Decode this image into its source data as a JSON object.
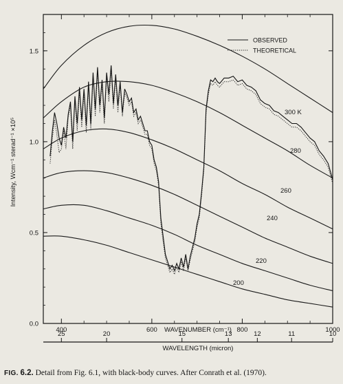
{
  "chart_data": {
    "type": "line",
    "x_axis_bottom": {
      "label": "WAVENUMBER (cm⁻¹)",
      "range": [
        360,
        1000
      ],
      "ticks": [
        400,
        600,
        800,
        1000
      ],
      "tick_labels": [
        "400",
        "600",
        "800",
        "1000"
      ]
    },
    "x_axis_secondary": {
      "label": "WAVELENGTH (micron)",
      "ticks": [
        25,
        20,
        15,
        13,
        12,
        11,
        10
      ],
      "tick_labels": [
        "25",
        "20",
        "15",
        "13",
        "12",
        "11",
        "10"
      ]
    },
    "y_axis": {
      "label": "Intensity, Wcm⁻¹ sterad⁻¹ ×10⁵",
      "range": [
        0,
        1.7
      ],
      "ticks": [
        0,
        0.5,
        1.0,
        1.5
      ],
      "tick_labels": [
        "0.0",
        "0.5",
        "1.0",
        "1.5"
      ]
    },
    "legend": {
      "placement": "top-right",
      "entries": [
        {
          "label": "OBSERVED",
          "style": "solid"
        },
        {
          "label": "THEORETICAL",
          "style": "dotted"
        }
      ]
    },
    "blackbody_curves": [
      {
        "label": "300 K",
        "T": 300,
        "x": [
          360,
          400,
          450,
          500,
          550,
          600,
          650,
          700,
          750,
          800,
          850,
          900,
          950,
          1000
        ],
        "y": [
          1.29,
          1.42,
          1.53,
          1.6,
          1.635,
          1.64,
          1.62,
          1.58,
          1.53,
          1.47,
          1.4,
          1.32,
          1.24,
          1.16
        ]
      },
      {
        "label": "280",
        "T": 280,
        "x": [
          360,
          400,
          450,
          500,
          550,
          600,
          650,
          700,
          750,
          800,
          850,
          900,
          950,
          1000
        ],
        "y": [
          1.13,
          1.22,
          1.3,
          1.33,
          1.33,
          1.31,
          1.27,
          1.22,
          1.16,
          1.09,
          1.02,
          0.95,
          0.87,
          0.8
        ]
      },
      {
        "label": "260",
        "T": 260,
        "x": [
          360,
          400,
          450,
          500,
          550,
          600,
          650,
          700,
          750,
          800,
          850,
          900,
          950,
          1000
        ],
        "y": [
          0.96,
          1.02,
          1.06,
          1.07,
          1.05,
          1.01,
          0.96,
          0.9,
          0.84,
          0.77,
          0.71,
          0.64,
          0.58,
          0.52
        ]
      },
      {
        "label": "240",
        "T": 240,
        "x": [
          360,
          400,
          450,
          500,
          550,
          600,
          650,
          700,
          750,
          800,
          850,
          900,
          950,
          1000
        ],
        "y": [
          0.8,
          0.83,
          0.84,
          0.83,
          0.8,
          0.76,
          0.71,
          0.65,
          0.59,
          0.53,
          0.47,
          0.42,
          0.37,
          0.33
        ]
      },
      {
        "label": "220",
        "T": 220,
        "x": [
          360,
          400,
          450,
          500,
          550,
          600,
          650,
          700,
          750,
          800,
          850,
          900,
          950,
          1000
        ],
        "y": [
          0.63,
          0.65,
          0.65,
          0.62,
          0.58,
          0.54,
          0.49,
          0.43,
          0.38,
          0.33,
          0.29,
          0.25,
          0.21,
          0.18
        ]
      },
      {
        "label": "200",
        "T": 200,
        "x": [
          360,
          400,
          450,
          500,
          550,
          600,
          650,
          700,
          750,
          800,
          850,
          900,
          950,
          1000
        ],
        "y": [
          0.48,
          0.48,
          0.46,
          0.43,
          0.39,
          0.35,
          0.31,
          0.27,
          0.23,
          0.19,
          0.16,
          0.13,
          0.11,
          0.09
        ]
      }
    ],
    "series": [
      {
        "name": "OBSERVED",
        "x": [
          375,
          380,
          385,
          390,
          395,
          400,
          405,
          410,
          415,
          420,
          425,
          430,
          435,
          440,
          445,
          450,
          455,
          460,
          465,
          470,
          475,
          480,
          485,
          490,
          495,
          500,
          505,
          510,
          515,
          520,
          525,
          530,
          535,
          540,
          545,
          550,
          555,
          560,
          565,
          570,
          575,
          580,
          585,
          590,
          595,
          600,
          605,
          610,
          615,
          620,
          625,
          630,
          635,
          640,
          645,
          650,
          655,
          660,
          665,
          670,
          675,
          680,
          685,
          690,
          695,
          700,
          705,
          710,
          715,
          720,
          725,
          730,
          735,
          740,
          745,
          750,
          760,
          770,
          780,
          790,
          800,
          810,
          820,
          830,
          840,
          850,
          860,
          870,
          880,
          890,
          900,
          910,
          920,
          930,
          940,
          950,
          960,
          970,
          980,
          990,
          1000
        ],
        "y": [
          0.92,
          1.06,
          1.16,
          1.1,
          1.02,
          0.98,
          1.08,
          1.02,
          1.15,
          1.22,
          1.0,
          1.25,
          1.1,
          1.3,
          1.12,
          1.29,
          1.09,
          1.33,
          1.1,
          1.38,
          1.18,
          1.41,
          1.2,
          1.34,
          1.13,
          1.38,
          1.26,
          1.42,
          1.21,
          1.37,
          1.2,
          1.33,
          1.16,
          1.29,
          1.26,
          1.22,
          1.24,
          1.16,
          1.18,
          1.12,
          1.14,
          1.1,
          1.06,
          1.06,
          1.0,
          0.98,
          0.9,
          0.86,
          0.78,
          0.58,
          0.48,
          0.38,
          0.34,
          0.3,
          0.32,
          0.29,
          0.33,
          0.3,
          0.36,
          0.31,
          0.38,
          0.3,
          0.37,
          0.42,
          0.47,
          0.55,
          0.6,
          0.72,
          0.86,
          1.18,
          1.28,
          1.34,
          1.33,
          1.35,
          1.33,
          1.32,
          1.35,
          1.35,
          1.36,
          1.33,
          1.34,
          1.31,
          1.3,
          1.28,
          1.23,
          1.21,
          1.2,
          1.17,
          1.16,
          1.14,
          1.12,
          1.1,
          1.1,
          1.08,
          1.05,
          1.02,
          1.0,
          0.95,
          0.92,
          0.88,
          0.79
        ]
      },
      {
        "name": "THEORETICAL",
        "x": [
          375,
          380,
          385,
          390,
          395,
          400,
          405,
          410,
          415,
          420,
          425,
          430,
          435,
          440,
          445,
          450,
          455,
          460,
          465,
          470,
          475,
          480,
          485,
          490,
          495,
          500,
          505,
          510,
          515,
          520,
          525,
          530,
          535,
          540,
          545,
          550,
          555,
          560,
          565,
          570,
          575,
          580,
          585,
          590,
          595,
          600,
          605,
          610,
          615,
          620,
          625,
          630,
          635,
          640,
          645,
          650,
          655,
          660,
          665,
          670,
          675,
          680,
          685,
          690,
          695,
          700,
          705,
          710,
          715,
          720,
          725,
          730,
          735,
          740,
          745,
          750,
          760,
          770,
          780,
          790,
          800,
          810,
          820,
          830,
          840,
          850,
          860,
          870,
          880,
          890,
          900,
          910,
          920,
          930,
          940,
          950,
          960,
          970,
          980,
          990,
          1000
        ],
        "y": [
          0.88,
          1.02,
          1.12,
          1.04,
          0.94,
          0.96,
          1.06,
          0.96,
          1.13,
          1.2,
          0.96,
          1.23,
          1.06,
          1.28,
          1.08,
          1.27,
          1.05,
          1.31,
          1.06,
          1.36,
          1.14,
          1.39,
          1.16,
          1.32,
          1.1,
          1.36,
          1.22,
          1.4,
          1.18,
          1.35,
          1.16,
          1.31,
          1.14,
          1.27,
          1.24,
          1.2,
          1.22,
          1.14,
          1.16,
          1.1,
          1.12,
          1.08,
          1.04,
          1.04,
          0.98,
          0.96,
          0.88,
          0.84,
          0.76,
          0.55,
          0.45,
          0.36,
          0.32,
          0.28,
          0.3,
          0.27,
          0.31,
          0.28,
          0.34,
          0.29,
          0.36,
          0.29,
          0.35,
          0.4,
          0.45,
          0.53,
          0.58,
          0.7,
          0.84,
          1.16,
          1.26,
          1.32,
          1.31,
          1.33,
          1.31,
          1.3,
          1.33,
          1.33,
          1.34,
          1.31,
          1.32,
          1.29,
          1.28,
          1.26,
          1.21,
          1.19,
          1.18,
          1.15,
          1.14,
          1.12,
          1.1,
          1.08,
          1.08,
          1.06,
          1.03,
          1.0,
          0.98,
          0.93,
          0.9,
          0.86,
          0.77
        ]
      }
    ]
  },
  "caption": {
    "label": "FIG.",
    "number": "6.2.",
    "text": "Detail from Fig. 6.1, with black-body curves. After Conrath et al. (1970)."
  }
}
